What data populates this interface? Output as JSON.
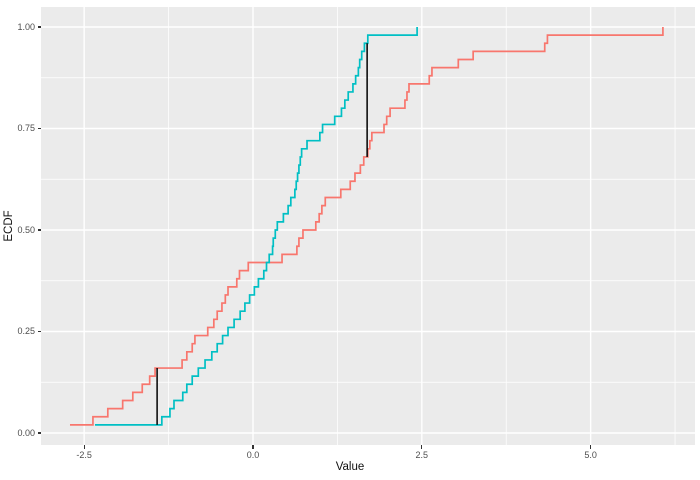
{
  "figure": {
    "xlabel": "Value",
    "ylabel": "ECDF"
  },
  "chart_data": {
    "type": "line",
    "subtype": "ecdf-step",
    "title": "",
    "xlabel": "Value",
    "ylabel": "ECDF",
    "legend": "none",
    "grid": true,
    "panel_bg": "#EBEBEB",
    "grid_color": "#FFFFFF",
    "tick_color": "#333333",
    "xlim": [
      -3.15,
      6.55
    ],
    "ylim": [
      -0.03,
      1.05
    ],
    "x_ticks": {
      "values": [
        -2.5,
        0,
        2.5,
        5
      ],
      "labels": [
        "-2.5",
        "0.0",
        "2.5",
        "5.0"
      ]
    },
    "y_ticks": {
      "values": [
        0,
        0.25,
        0.5,
        0.75,
        1
      ],
      "labels": [
        "0.00",
        "0.25",
        "0.50",
        "0.75",
        "1.00"
      ]
    },
    "x_minor": [
      -1.25,
      1.25,
      3.75,
      6.25
    ],
    "y_minor": [
      0.125,
      0.375,
      0.625,
      0.875
    ],
    "series": [
      {
        "name": "ecdf-line-red",
        "color": "#F8766D",
        "n": 50,
        "sorted_values": [
          -2.71,
          -2.37,
          -2.15,
          -1.93,
          -1.78,
          -1.64,
          -1.53,
          -1.45,
          -1.05,
          -0.98,
          -0.9,
          -0.86,
          -0.67,
          -0.58,
          -0.53,
          -0.46,
          -0.41,
          -0.37,
          -0.24,
          -0.2,
          -0.07,
          0.43,
          0.65,
          0.68,
          0.74,
          0.93,
          0.98,
          1.02,
          1.07,
          1.3,
          1.44,
          1.51,
          1.59,
          1.64,
          1.7,
          1.73,
          1.76,
          1.94,
          1.98,
          2.03,
          2.25,
          2.28,
          2.31,
          2.61,
          2.65,
          3.04,
          3.26,
          4.32,
          4.36,
          6.07
        ]
      },
      {
        "name": "ecdf-line-cyan",
        "color": "#00BFC4",
        "n": 50,
        "sorted_values": [
          -2.34,
          -1.35,
          -1.23,
          -1.17,
          -1.04,
          -0.98,
          -0.9,
          -0.81,
          -0.71,
          -0.61,
          -0.53,
          -0.45,
          -0.37,
          -0.28,
          -0.19,
          -0.12,
          -0.05,
          0.02,
          0.08,
          0.16,
          0.2,
          0.24,
          0.29,
          0.3,
          0.33,
          0.36,
          0.45,
          0.52,
          0.56,
          0.62,
          0.64,
          0.66,
          0.68,
          0.7,
          0.72,
          0.8,
          0.99,
          1.03,
          1.21,
          1.31,
          1.36,
          1.41,
          1.48,
          1.52,
          1.56,
          1.58,
          1.61,
          1.65,
          1.7,
          2.43
        ]
      }
    ],
    "ks_segments": [
      {
        "x": -1.42,
        "y_from": 0.02,
        "y_to": 0.16,
        "color": "#000000"
      },
      {
        "x": 1.69,
        "y_from": 0.68,
        "y_to": 0.96,
        "color": "#000000"
      }
    ]
  }
}
